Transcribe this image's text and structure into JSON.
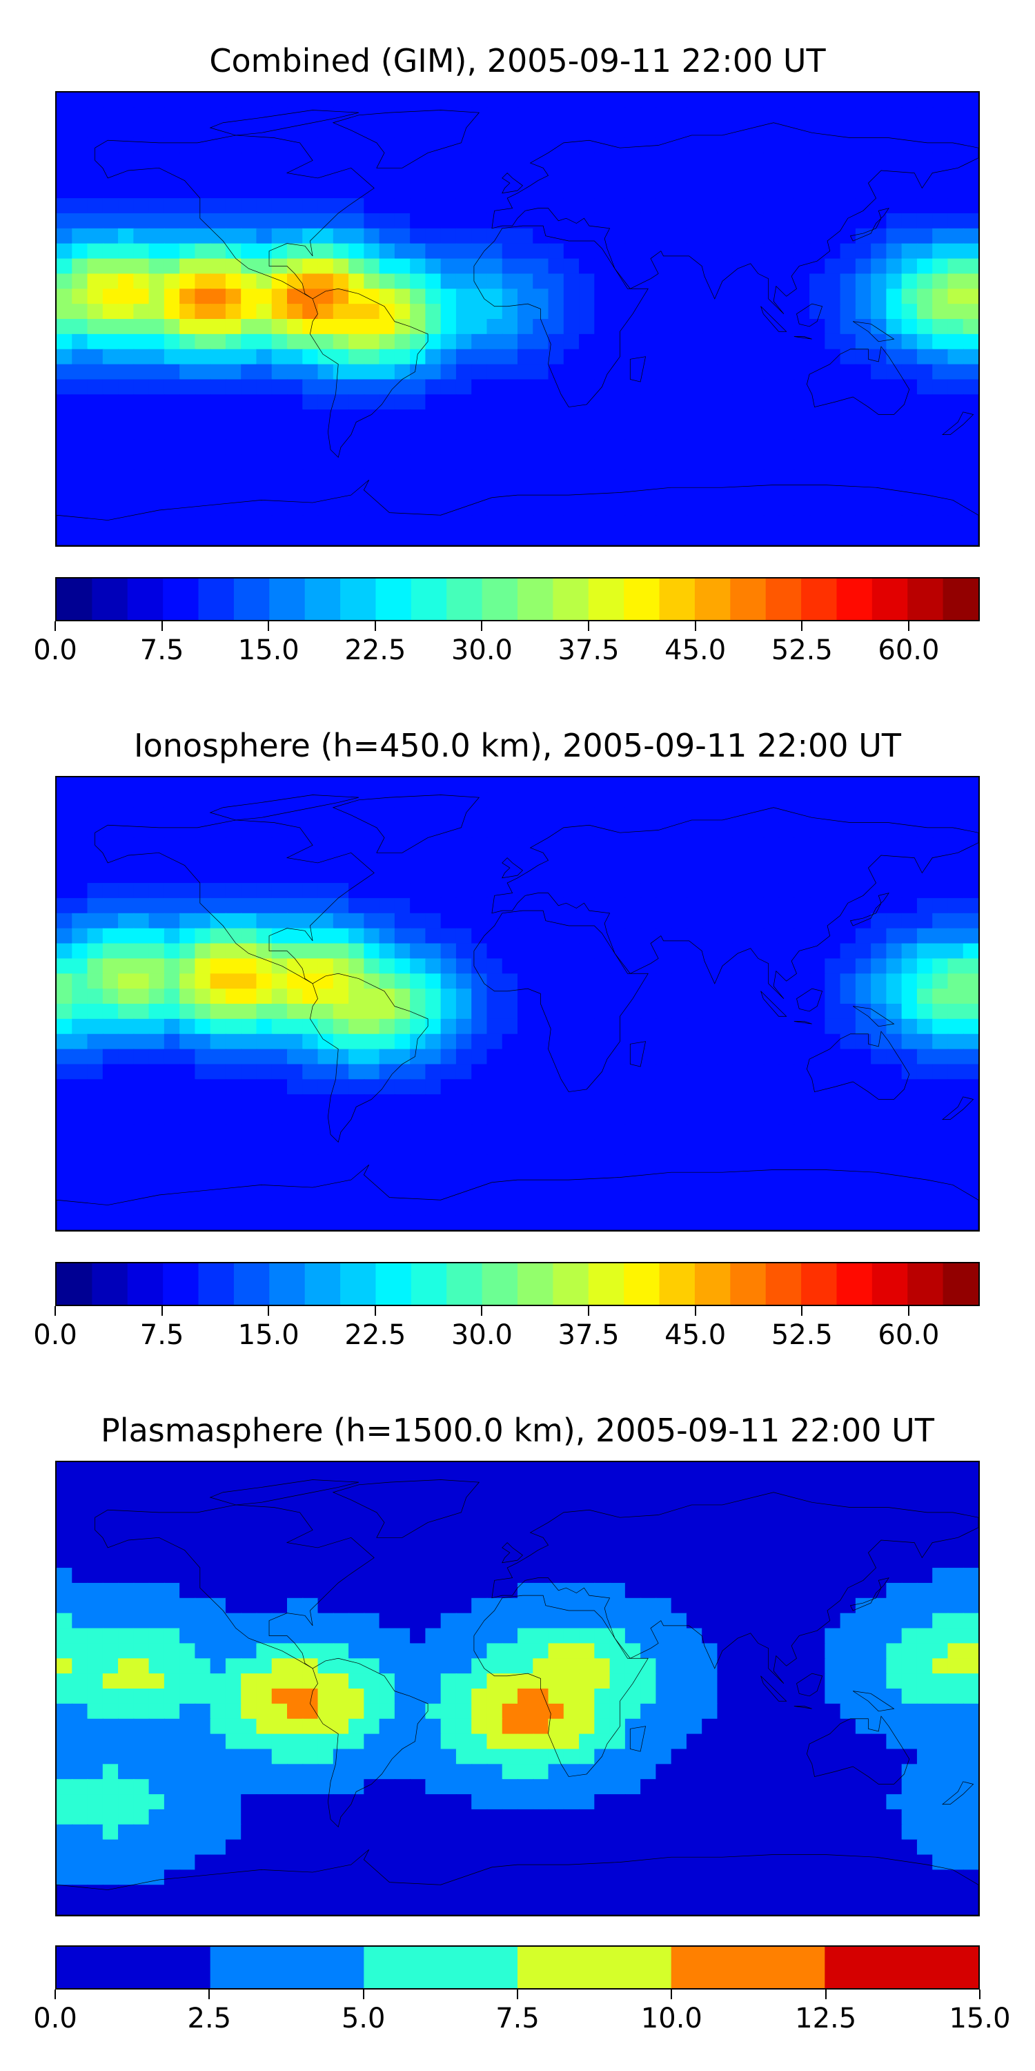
{
  "chart_data": [
    {
      "type": "heatmap",
      "title": "Combined (GIM), 2005-09-11 22:00 UT",
      "xlabel": "",
      "ylabel": "",
      "grid": false,
      "colorbar": {
        "cmap": "jet",
        "vmin": 0.0,
        "vmax": 65.0,
        "levels": 26,
        "tick_labels": [
          "0.0",
          "7.5",
          "15.0",
          "22.5",
          "30.0",
          "37.5",
          "45.0",
          "52.5",
          "60.0"
        ],
        "tick_values": [
          0.0,
          7.5,
          15.0,
          22.5,
          30.0,
          37.5,
          45.0,
          52.5,
          60.0
        ]
      },
      "features": [
        {
          "lon": -80,
          "lat": 8,
          "value": 50
        },
        {
          "lon": -120,
          "lat": 8,
          "value": 48
        },
        {
          "lon": -60,
          "lat": 2,
          "value": 44
        },
        {
          "lon": -155,
          "lat": 10,
          "value": 42
        },
        {
          "lon": 175,
          "lat": 8,
          "value": 36
        },
        {
          "lon": -20,
          "lat": 5,
          "value": 22
        },
        {
          "lon": 0,
          "lat": -40,
          "value": 9
        },
        {
          "lon": 60,
          "lat": 40,
          "value": 6
        }
      ]
    },
    {
      "type": "heatmap",
      "title": "Ionosphere  (h=450.0 km), 2005-09-11 22:00 UT",
      "xlabel": "",
      "ylabel": "",
      "grid": false,
      "colorbar": {
        "cmap": "jet",
        "vmin": 0.0,
        "vmax": 65.0,
        "levels": 26,
        "tick_labels": [
          "0.0",
          "7.5",
          "15.0",
          "22.5",
          "30.0",
          "37.5",
          "45.0",
          "52.5",
          "60.0"
        ],
        "tick_values": [
          0.0,
          7.5,
          15.0,
          22.5,
          30.0,
          37.5,
          45.0,
          52.5,
          60.0
        ]
      },
      "features": [
        {
          "lon": -110,
          "lat": 10,
          "value": 44
        },
        {
          "lon": -80,
          "lat": 8,
          "value": 42
        },
        {
          "lon": -60,
          "lat": 0,
          "value": 38
        },
        {
          "lon": -150,
          "lat": 10,
          "value": 36
        },
        {
          "lon": 175,
          "lat": 5,
          "value": 32
        },
        {
          "lon": 40,
          "lat": 0,
          "value": 4
        },
        {
          "lon": 90,
          "lat": 20,
          "value": 5
        }
      ]
    },
    {
      "type": "heatmap",
      "title": "Plasmasphere (h=1500.0 km), 2005-09-11 22:00 UT",
      "xlabel": "",
      "ylabel": "",
      "grid": false,
      "colorbar": {
        "cmap": "jet",
        "vmin": 0.0,
        "vmax": 15.0,
        "levels": 6,
        "tick_labels": [
          "0.0",
          "2.5",
          "5.0",
          "7.5",
          "10.0",
          "12.5",
          "15.0"
        ],
        "tick_values": [
          0.0,
          2.5,
          5.0,
          7.5,
          10.0,
          12.5,
          15.0
        ]
      },
      "features": [
        {
          "lon": 5,
          "lat": -10,
          "value": 11
        },
        {
          "lon": 20,
          "lat": 5,
          "value": 9
        },
        {
          "lon": -85,
          "lat": -5,
          "value": 10.5
        },
        {
          "lon": -150,
          "lat": 5,
          "value": 8
        },
        {
          "lon": 175,
          "lat": 10,
          "value": 8
        },
        {
          "lon": -160,
          "lat": -45,
          "value": 6
        }
      ]
    }
  ]
}
